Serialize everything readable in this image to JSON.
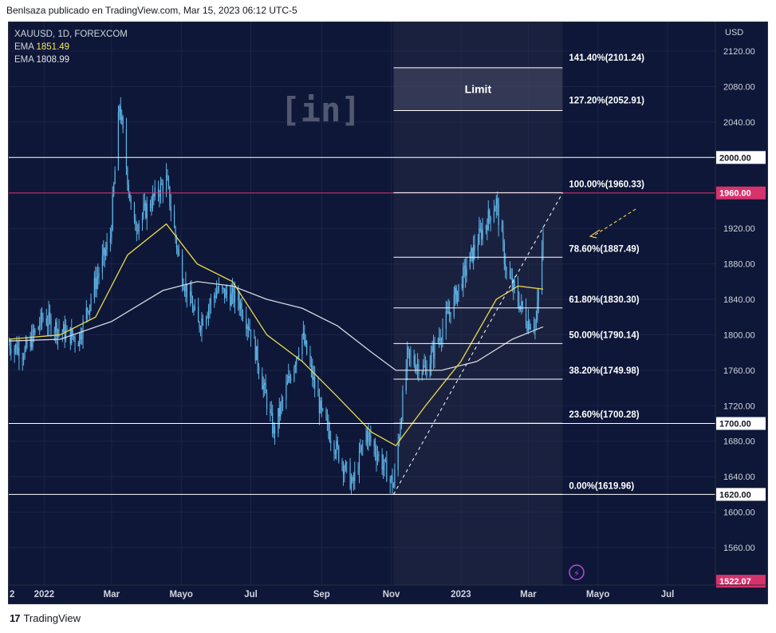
{
  "header": {
    "publish_text": "Benlsaza publicado en TradingView.com, Mar 15, 2023 06:12 UTC-5"
  },
  "legend": {
    "symbol": "XAUUSD, 1D, FOREXCOM",
    "ema1_label": "EMA",
    "ema1_value": "1851.49",
    "ema2_label": "EMA",
    "ema2_value": "1808.99"
  },
  "watermark": "[in]",
  "footer": {
    "brand": "TradingView",
    "logo_glyph": "17"
  },
  "colors": {
    "background": "#0e1738",
    "candle": "#5fb4e6",
    "ema_fast": "#e8d94a",
    "ema_slow": "#d8d8e0",
    "horizontal_level": "#ffffff",
    "resistance": "#d6336c",
    "fib_zone": "#2a2f4a"
  },
  "chart_data": {
    "type": "candlestick",
    "currency": "USD",
    "y_range": [
      1522,
      2140
    ],
    "y_ticks": [
      "2120.00",
      "2080.00",
      "2040.00",
      "2000.00",
      "1960.00",
      "1920.00",
      "1880.00",
      "1840.00",
      "1800.00",
      "1760.00",
      "1720.00",
      "1700.00",
      "1680.00",
      "1640.00",
      "1620.00",
      "1600.00",
      "1560.00",
      "1522.07"
    ],
    "x_labels": [
      {
        "date": "2021-12-01",
        "label": "2"
      },
      {
        "date": "2022-01-01",
        "label": "2022"
      },
      {
        "date": "2022-03-01",
        "label": "Mar"
      },
      {
        "date": "2022-05-01",
        "label": "Mayo"
      },
      {
        "date": "2022-07-01",
        "label": "Jul"
      },
      {
        "date": "2022-09-01",
        "label": "Sep"
      },
      {
        "date": "2022-11-01",
        "label": "Nov"
      },
      {
        "date": "2023-01-01",
        "label": "2023"
      },
      {
        "date": "2023-03-01",
        "label": "Mar"
      },
      {
        "date": "2023-05-01",
        "label": "Mayo"
      },
      {
        "date": "2023-07-01",
        "label": "Jul"
      }
    ],
    "price_path": [
      [
        "2021-12-01",
        1790
      ],
      [
        "2021-12-15",
        1780
      ],
      [
        "2021-12-31",
        1820
      ],
      [
        "2022-01-15",
        1805
      ],
      [
        "2022-01-31",
        1795
      ],
      [
        "2022-02-15",
        1860
      ],
      [
        "2022-02-28",
        1910
      ],
      [
        "2022-03-08",
        2060
      ],
      [
        "2022-03-20",
        1920
      ],
      [
        "2022-04-18",
        1975
      ],
      [
        "2022-05-01",
        1870
      ],
      [
        "2022-05-16",
        1810
      ],
      [
        "2022-06-01",
        1850
      ],
      [
        "2022-06-20",
        1840
      ],
      [
        "2022-07-01",
        1805
      ],
      [
        "2022-07-21",
        1690
      ],
      [
        "2022-08-15",
        1800
      ],
      [
        "2022-09-01",
        1710
      ],
      [
        "2022-09-28",
        1630
      ],
      [
        "2022-10-10",
        1690
      ],
      [
        "2022-11-03",
        1630
      ],
      [
        "2022-11-15",
        1775
      ],
      [
        "2022-12-01",
        1760
      ],
      [
        "2022-12-20",
        1820
      ],
      [
        "2023-01-15",
        1905
      ],
      [
        "2023-02-01",
        1950
      ],
      [
        "2023-02-10",
        1870
      ],
      [
        "2023-02-28",
        1815
      ],
      [
        "2023-03-08",
        1815
      ],
      [
        "2023-03-14",
        1910
      ]
    ],
    "ema_fast_path": [
      [
        "2021-12-01",
        1795
      ],
      [
        "2022-01-15",
        1800
      ],
      [
        "2022-02-15",
        1820
      ],
      [
        "2022-03-15",
        1890
      ],
      [
        "2022-04-18",
        1925
      ],
      [
        "2022-05-15",
        1880
      ],
      [
        "2022-06-15",
        1860
      ],
      [
        "2022-07-15",
        1800
      ],
      [
        "2022-08-15",
        1770
      ],
      [
        "2022-09-15",
        1730
      ],
      [
        "2022-10-15",
        1690
      ],
      [
        "2022-11-05",
        1675
      ],
      [
        "2022-12-01",
        1720
      ],
      [
        "2023-01-01",
        1770
      ],
      [
        "2023-02-01",
        1840
      ],
      [
        "2023-02-20",
        1855
      ],
      [
        "2023-03-14",
        1851.49
      ]
    ],
    "ema_slow_path": [
      [
        "2021-12-01",
        1793
      ],
      [
        "2022-01-15",
        1795
      ],
      [
        "2022-03-01",
        1815
      ],
      [
        "2022-04-15",
        1850
      ],
      [
        "2022-05-15",
        1860
      ],
      [
        "2022-06-15",
        1855
      ],
      [
        "2022-07-15",
        1840
      ],
      [
        "2022-08-15",
        1830
      ],
      [
        "2022-09-15",
        1810
      ],
      [
        "2022-10-15",
        1780
      ],
      [
        "2022-11-05",
        1760
      ],
      [
        "2022-12-15",
        1760
      ],
      [
        "2023-01-15",
        1770
      ],
      [
        "2023-02-15",
        1795
      ],
      [
        "2023-03-14",
        1808.99
      ]
    ],
    "horizontal_levels": [
      {
        "value": 2000,
        "label": "2000.00"
      },
      {
        "value": 1700,
        "label": "1700.00"
      },
      {
        "value": 1620,
        "label": "1620.00"
      }
    ],
    "resistance_level": {
      "value": 1960,
      "label": "1960.00"
    },
    "current_price_label": {
      "value": 1522.07,
      "label": "1522.07"
    },
    "fibonacci": {
      "start_date": "2022-11-03",
      "end_date": "2023-03-31",
      "levels": [
        {
          "value": 2101.24,
          "label": "141.40%(2101.24)"
        },
        {
          "value": 2052.91,
          "label": "127.20%(2052.91)"
        },
        {
          "value": 1960.33,
          "label": "100.00%(1960.33)"
        },
        {
          "value": 1887.49,
          "label": "78.60%(1887.49)"
        },
        {
          "value": 1830.3,
          "label": "61.80%(1830.30)"
        },
        {
          "value": 1790.14,
          "label": "50.00%(1790.14)"
        },
        {
          "value": 1749.98,
          "label": "38.20%(1749.98)"
        },
        {
          "value": 1700.28,
          "label": "23.60%(1700.28)"
        },
        {
          "value": 1619.96,
          "label": "0.00%(1619.96)"
        }
      ],
      "zone_label": "Limit"
    },
    "trendline": {
      "start": [
        "2022-11-03",
        1620
      ],
      "end": [
        "2023-03-31",
        1960
      ]
    }
  }
}
